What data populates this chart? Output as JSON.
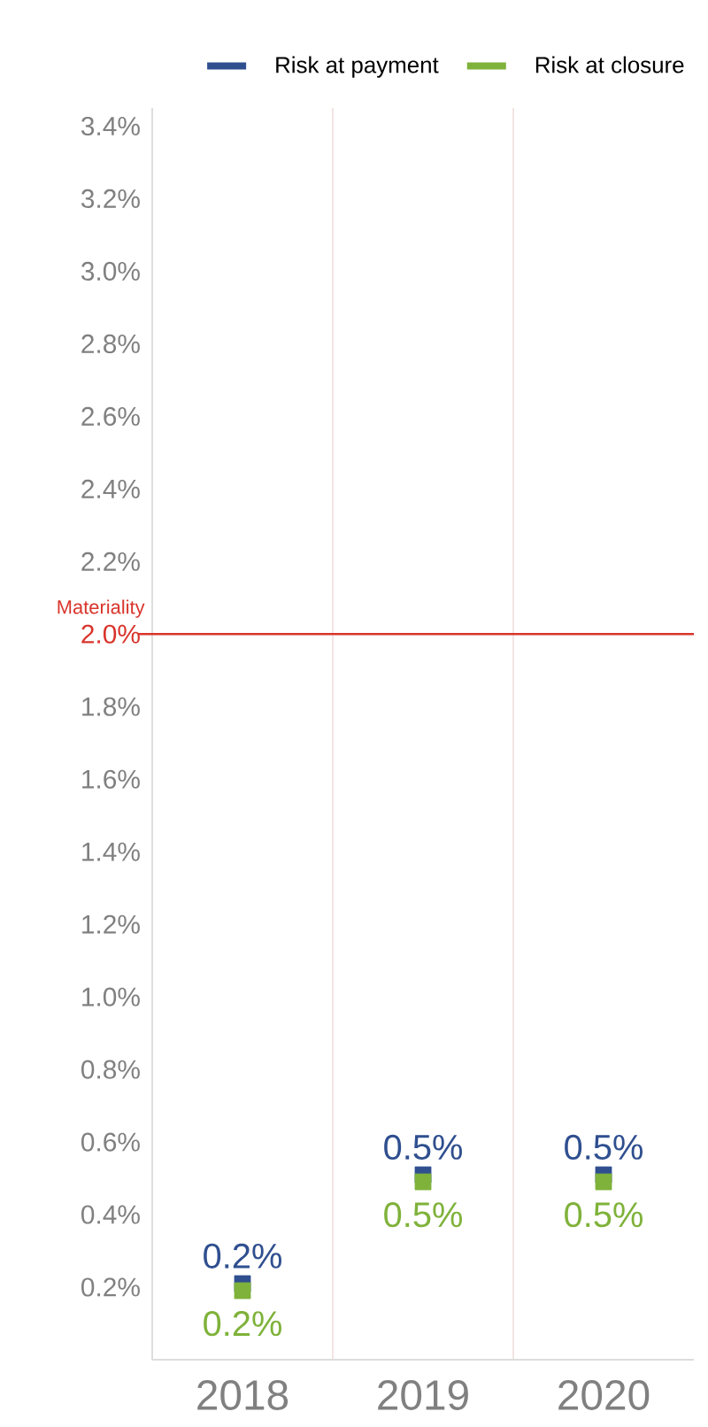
{
  "chart_data": {
    "type": "scatter",
    "marker": "square",
    "legend": "top right",
    "grid": "x",
    "categories": [
      "2018",
      "2019",
      "2020"
    ],
    "series": [
      {
        "name": "Risk at payment",
        "color": "#2f4f8f",
        "values": [
          0.2,
          0.5,
          0.5
        ],
        "value_labels": [
          "0.2%",
          "0.5%",
          "0.5%"
        ]
      },
      {
        "name": "Risk at closure",
        "color": "#7fb23a",
        "values": [
          0.2,
          0.5,
          0.5
        ],
        "value_labels": [
          "0.2%",
          "0.5%",
          "0.5%"
        ]
      }
    ],
    "ylim": [
      0,
      3.45
    ],
    "yticks": [
      {
        "value": 0.2,
        "label": "0.2%"
      },
      {
        "value": 0.4,
        "label": "0.4%"
      },
      {
        "value": 0.6,
        "label": "0.6%"
      },
      {
        "value": 0.8,
        "label": "0.8%"
      },
      {
        "value": 1.0,
        "label": "1.0%"
      },
      {
        "value": 1.2,
        "label": "1.2%"
      },
      {
        "value": 1.4,
        "label": "1.4%"
      },
      {
        "value": 1.6,
        "label": "1.6%"
      },
      {
        "value": 1.8,
        "label": "1.8%"
      },
      {
        "value": 2.0,
        "label": "2.0%"
      },
      {
        "value": 2.2,
        "label": "2.2%"
      },
      {
        "value": 2.4,
        "label": "2.4%"
      },
      {
        "value": 2.6,
        "label": "2.6%"
      },
      {
        "value": 2.8,
        "label": "2.8%"
      },
      {
        "value": 3.0,
        "label": "3.0%"
      },
      {
        "value": 3.2,
        "label": "3.2%"
      },
      {
        "value": 3.4,
        "label": "3.4%"
      }
    ],
    "ref_lines": [
      {
        "axis": "y",
        "value": 2.0,
        "label": "Materiality",
        "color": "#d9342b"
      }
    ]
  }
}
